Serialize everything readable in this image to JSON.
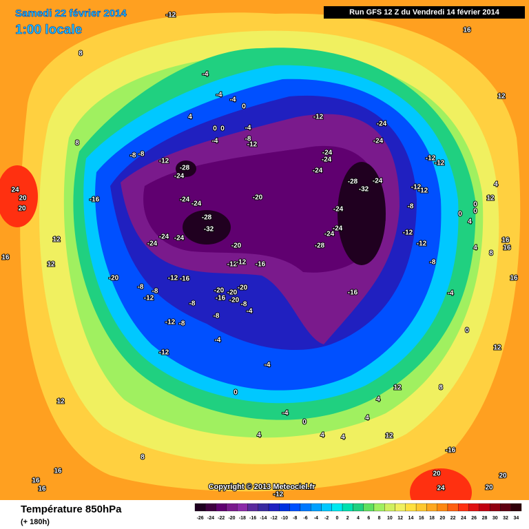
{
  "header": {
    "date": "Samedi 22 février 2014",
    "time": "1:00 locale",
    "run": "Run GFS 12 Z du Vendredi 14 février 2014"
  },
  "footer": {
    "title": "Température 850hPa",
    "range": "(+ 180h)",
    "copyright": "Copyright © 2013 Meteociel.fr"
  },
  "scale": {
    "values": [
      -26,
      -24,
      -22,
      -20,
      -18,
      -16,
      -14,
      -12,
      -10,
      -8,
      -6,
      -4,
      -2,
      0,
      2,
      4,
      6,
      8,
      10,
      12,
      14,
      16,
      18,
      20,
      22,
      24,
      26,
      28,
      30,
      32,
      34
    ],
    "colors": [
      "#200020",
      "#400040",
      "#600070",
      "#7a1a8c",
      "#8c2aa8",
      "#5b2a9c",
      "#3a2aa0",
      "#2020c0",
      "#0030e0",
      "#0050ff",
      "#0078ff",
      "#00a0ff",
      "#00c8ff",
      "#00e8f0",
      "#00e0b0",
      "#20d080",
      "#60e060",
      "#a0f060",
      "#d0f060",
      "#f0f060",
      "#ffe040",
      "#ffc830",
      "#ffa820",
      "#ff8810",
      "#ff6010",
      "#ff3010",
      "#e01010",
      "#c00010",
      "#900010",
      "#600010",
      "#300008"
    ]
  },
  "map": {
    "labels": [
      -12,
      16,
      8,
      -4,
      -4,
      -4,
      0,
      4,
      -12,
      -24,
      0,
      0,
      -4,
      8,
      -4,
      -8,
      -12,
      -24,
      12,
      -8,
      -8,
      -12,
      -28,
      -24,
      -24,
      -12,
      -12,
      -24,
      -24,
      -28,
      -24,
      -32,
      -12,
      -12,
      4,
      24,
      20,
      20,
      -16,
      -24,
      -24,
      -20,
      0,
      0,
      12,
      -8,
      -28,
      -32,
      -24,
      0,
      4,
      -24,
      -24,
      -12,
      16,
      16,
      -24,
      -24,
      -24,
      -20,
      -28,
      -12,
      4,
      12,
      12,
      16,
      8,
      -12,
      -12,
      -16,
      -8,
      16,
      -20,
      -12,
      -16,
      -8,
      -8,
      -12,
      -20,
      -20,
      -20,
      -16,
      -20,
      -16,
      -4,
      -8,
      -8,
      -4,
      -8,
      -12,
      -8,
      0,
      -4,
      12,
      -12,
      -4,
      8,
      12,
      4,
      0,
      12,
      -4,
      0,
      4,
      4,
      4,
      4,
      8,
      -16,
      12,
      20,
      20,
      16,
      16,
      16,
      24,
      20,
      -12
    ]
  }
}
